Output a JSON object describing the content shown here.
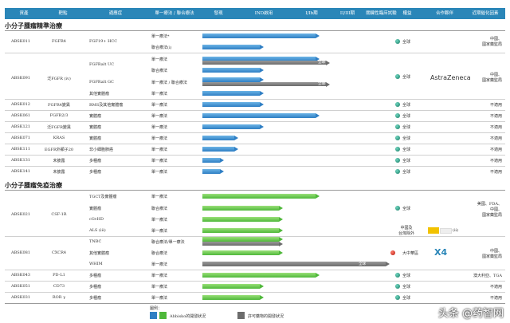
{
  "header": [
    "資產",
    "靶點",
    "適應症",
    "單一療法 / 聯合療法",
    "發現",
    "IND啟用",
    "I/Ib期",
    "II/III期",
    "關鍵性臨床試驗",
    "權益",
    "合作夥伴",
    "近期催化因素"
  ],
  "sections": {
    "s1": "小分子腫瘤精準治療",
    "s2": "小分子腫瘤免疫治療"
  },
  "rows": {
    "abs011": {
      "asset": "ABSK011",
      "target": "FGFR4",
      "ind": "FGF19+ HCC",
      "t1": "單一療法*",
      "t2": "聯合療法(i)",
      "rights": "全球",
      "cat": "中國、\n國家藥監局"
    },
    "abs091": {
      "asset": "ABSK091",
      "target": "泛FGFR (iv)",
      "ind1": "FGFRalt UC",
      "ind2": "FGFRalt GC",
      "t1": "單一療法",
      "t2": "聯合療法",
      "t3": "單一療法 / 聯合療法",
      "t4": "其他實體瘤",
      "t5": "單一療法",
      "rights": "全球",
      "partner": "AstraZeneca",
      "cat": "中國、\n國家藥監局",
      "tag1": "全球",
      "tag2": "全球"
    },
    "abs012": {
      "asset": "ABSK012",
      "target": "FGFR4變異",
      "ind": "RMS及其他實體瘤",
      "t": "單一療法",
      "rights": "全球",
      "cat": "不適用"
    },
    "abs061": {
      "asset": "ABSK061",
      "target": "FGFR2/3",
      "ind": "實體瘤",
      "t": "單一療法",
      "rights": "全球",
      "cat": "不適用"
    },
    "abs121": {
      "asset": "ABSK121",
      "target": "泛FGFR變異",
      "ind": "實體瘤",
      "t": "單一療法",
      "rights": "全球",
      "cat": "不適用"
    },
    "abs071": {
      "asset": "ABSK071",
      "target": "KRAS",
      "ind": "實體瘤",
      "t": "單一療法",
      "rights": "全球",
      "cat": "不適用"
    },
    "abs111": {
      "asset": "ABSK111",
      "target": "EGFR外顯子20",
      "ind": "非小細胞肺癌",
      "t": "單一療法",
      "rights": "全球",
      "cat": "不適用"
    },
    "abs131": {
      "asset": "ABSK131",
      "target": "未披露",
      "ind": "多種瘤",
      "t": "單一療法",
      "rights": "全球",
      "cat": "不適用"
    },
    "abs141": {
      "asset": "ABSK141",
      "target": "未披露",
      "ind": "多種瘤",
      "t": "單一療法",
      "rights": "全球",
      "cat": "不適用"
    },
    "abs021": {
      "asset": "ABSK021",
      "target": "CSF-1R",
      "ind1": "TGCT及實體瘤",
      "ind2": "實體瘤",
      "ind3": "cGvHD",
      "ind4": "ALS (iii)",
      "t1": "單一療法",
      "t2": "聯合療法",
      "t3": "單一療法",
      "t4": "單一療法",
      "rights": "全球",
      "rights2": "中國及\n台灣除外",
      "partner_tag": "(ii)",
      "cat": "美國、FDA、\n中國、\n國家藥監局"
    },
    "abs081": {
      "asset": "ABSK081",
      "target": "CXCR4",
      "ind1": "TNBC",
      "ind2": "其他實體瘤",
      "ind3": "WHIM",
      "t1": "聯合療法/單一療法",
      "t2": "聯合療法",
      "t3": "單一療法",
      "rights": "大中華區",
      "partner": "X4",
      "cat": "中國、\n國家藥監局",
      "tag": "全球"
    },
    "abs043": {
      "asset": "ABSK043",
      "target": "PD-L1",
      "ind": "多種瘤",
      "t": "單一療法",
      "rights": "全球",
      "cat": "澳大利亞、TGA"
    },
    "abs051": {
      "asset": "ABSK051",
      "target": "CD73",
      "ind": "多種瘤",
      "t": "單一療法",
      "rights": "全球",
      "cat": "不適用"
    },
    "abs031": {
      "asset": "ABSK031",
      "target": "ROR γ",
      "ind": "多種瘤",
      "t": "單一療法",
      "rights": "全球",
      "cat": "不適用"
    }
  },
  "legend": {
    "title": "圖例：",
    "abbisko": "Abbisko的開發狀況",
    "licensed": "許可藥物的開發狀況"
  },
  "watermark": "头条 @药智网",
  "colors": {
    "header": "#2a86b8",
    "blue": "#2f7fc4",
    "green": "#4fb83a",
    "gray": "#6c6c6c"
  }
}
